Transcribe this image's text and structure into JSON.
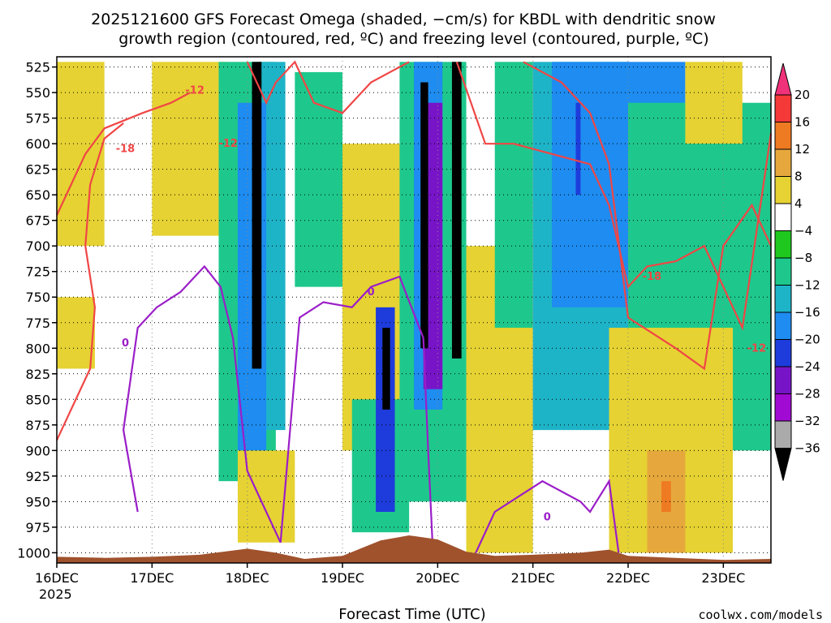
{
  "chart_data": {
    "type": "heatmap",
    "title_lines": [
      "2025121600 GFS Forecast Omega (shaded, −cm/s) for KBDL with dendritic snow",
      "growth region (contoured, red, ºC) and freezing level (contoured, purple, ºC)"
    ],
    "xlabel": "Forecast Time (UTC)",
    "x_ticks": [
      "16DEC",
      "17DEC",
      "18DEC",
      "19DEC",
      "20DEC",
      "21DEC",
      "22DEC",
      "23DEC"
    ],
    "x_year_label": "2025",
    "x_range_days": [
      0,
      7.5
    ],
    "y_ticks": [
      525,
      550,
      575,
      600,
      625,
      650,
      675,
      700,
      725,
      750,
      775,
      800,
      825,
      850,
      875,
      900,
      925,
      950,
      975,
      1000
    ],
    "y_range_hpa": [
      1010,
      515
    ],
    "colorbar": {
      "labels": [
        "20",
        "16",
        "12",
        "8",
        "4",
        "−4",
        "−8",
        "−12",
        "−16",
        "−20",
        "−24",
        "−28",
        "−32",
        "−36"
      ],
      "colors": [
        "#f0327a",
        "#f53838",
        "#ee7a22",
        "#e6a83c",
        "#e6d232",
        "#ffffff",
        "#1ec81e",
        "#1ec88c",
        "#1eb4c8",
        "#1e8cf0",
        "#1e3cdc",
        "#7814c8",
        "#a00ad2",
        "#aaaaaa",
        "#000000"
      ]
    },
    "shaded_bands": [
      {
        "x": [
          0.0,
          0.5
        ],
        "p": [
          520,
          700
        ],
        "value": 6
      },
      {
        "x": [
          0.0,
          0.4
        ],
        "p": [
          750,
          820
        ],
        "value": 6
      },
      {
        "x": [
          1.0,
          1.8
        ],
        "p": [
          520,
          690
        ],
        "value": 6
      },
      {
        "x": [
          1.7,
          2.3
        ],
        "p": [
          520,
          930
        ],
        "value": -8
      },
      {
        "x": [
          2.1,
          2.4
        ],
        "p": [
          520,
          880
        ],
        "value": -12
      },
      {
        "x": [
          1.9,
          2.2
        ],
        "p": [
          560,
          900
        ],
        "value": -16
      },
      {
        "x": [
          2.05,
          2.15
        ],
        "p": [
          520,
          820
        ],
        "value": -36
      },
      {
        "x": [
          1.9,
          2.5
        ],
        "p": [
          900,
          990
        ],
        "value": 6
      },
      {
        "x": [
          2.5,
          3.0
        ],
        "p": [
          530,
          740
        ],
        "value": -8
      },
      {
        "x": [
          3.0,
          4.0
        ],
        "p": [
          600,
          900
        ],
        "value": 6
      },
      {
        "x": [
          3.1,
          3.7
        ],
        "p": [
          850,
          980
        ],
        "value": -8
      },
      {
        "x": [
          3.35,
          3.55
        ],
        "p": [
          760,
          960
        ],
        "value": -20
      },
      {
        "x": [
          3.42,
          3.5
        ],
        "p": [
          780,
          860
        ],
        "value": -36
      },
      {
        "x": [
          3.6,
          4.3
        ],
        "p": [
          520,
          950
        ],
        "value": -8
      },
      {
        "x": [
          3.75,
          4.05
        ],
        "p": [
          520,
          860
        ],
        "value": -16
      },
      {
        "x": [
          3.85,
          4.05
        ],
        "p": [
          560,
          840
        ],
        "value": -24
      },
      {
        "x": [
          3.82,
          3.9
        ],
        "p": [
          540,
          800
        ],
        "value": -36
      },
      {
        "x": [
          4.15,
          4.25
        ],
        "p": [
          520,
          810
        ],
        "value": -36
      },
      {
        "x": [
          4.3,
          5.0
        ],
        "p": [
          700,
          1000
        ],
        "value": 6
      },
      {
        "x": [
          4.6,
          5.0
        ],
        "p": [
          520,
          780
        ],
        "value": -8
      },
      {
        "x": [
          5.0,
          6.0
        ],
        "p": [
          520,
          880
        ],
        "value": -12
      },
      {
        "x": [
          5.2,
          6.6
        ],
        "p": [
          520,
          760
        ],
        "value": -16
      },
      {
        "x": [
          5.45,
          5.5
        ],
        "p": [
          560,
          650
        ],
        "value": -20
      },
      {
        "x": [
          6.0,
          7.5
        ],
        "p": [
          560,
          900
        ],
        "value": -8
      },
      {
        "x": [
          5.8,
          7.1
        ],
        "p": [
          780,
          1000
        ],
        "value": 6
      },
      {
        "x": [
          6.2,
          6.6
        ],
        "p": [
          900,
          1000
        ],
        "value": 12
      },
      {
        "x": [
          6.35,
          6.45
        ],
        "p": [
          930,
          960
        ],
        "value": 16
      },
      {
        "x": [
          6.6,
          7.2
        ],
        "p": [
          520,
          600
        ],
        "value": 8
      }
    ],
    "dgz_contours": [
      {
        "name": "-12 west",
        "value": -12,
        "points": [
          [
            0.0,
            670
          ],
          [
            0.15,
            640
          ],
          [
            0.3,
            610
          ],
          [
            0.5,
            585
          ],
          [
            0.9,
            570
          ],
          [
            1.2,
            560
          ],
          [
            1.4,
            550
          ]
        ],
        "label": "-12",
        "label_at": [
          1.45,
          548
        ]
      },
      {
        "name": "-18 west",
        "value": -18,
        "points": [
          [
            0.0,
            890
          ],
          [
            0.15,
            860
          ],
          [
            0.35,
            820
          ],
          [
            0.4,
            760
          ],
          [
            0.3,
            700
          ],
          [
            0.35,
            640
          ],
          [
            0.5,
            595
          ],
          [
            0.7,
            580
          ]
        ],
        "label": "-18",
        "label_at": [
          0.72,
          605
        ]
      },
      {
        "name": "-12 mid",
        "value": -12,
        "points": [
          [
            2.0,
            520
          ],
          [
            2.2,
            560
          ],
          [
            2.3,
            540
          ],
          [
            2.5,
            520
          ],
          [
            2.7,
            560
          ],
          [
            3.0,
            570
          ],
          [
            3.3,
            540
          ],
          [
            3.7,
            520
          ]
        ],
        "label": "-12",
        "label_at": [
          1.8,
          600
        ]
      },
      {
        "name": "-12 east",
        "value": -12,
        "points": [
          [
            4.2,
            520
          ],
          [
            4.5,
            600
          ],
          [
            4.8,
            600
          ],
          [
            5.2,
            610
          ],
          [
            5.6,
            620
          ],
          [
            5.8,
            660
          ],
          [
            6.0,
            740
          ],
          [
            6.2,
            720
          ],
          [
            6.5,
            715
          ],
          [
            6.8,
            700
          ],
          [
            7.2,
            780
          ],
          [
            7.5,
            590
          ]
        ],
        "label": "-12",
        "label_at": [
          7.35,
          800
        ]
      },
      {
        "name": "-18 east",
        "value": -18,
        "points": [
          [
            4.9,
            520
          ],
          [
            5.3,
            540
          ],
          [
            5.6,
            570
          ],
          [
            5.8,
            620
          ],
          [
            6.0,
            770
          ],
          [
            6.5,
            800
          ],
          [
            6.8,
            820
          ],
          [
            7.0,
            700
          ],
          [
            7.3,
            660
          ],
          [
            7.5,
            700
          ]
        ],
        "label": "-18",
        "label_at": [
          6.25,
          730
        ]
      }
    ],
    "freezing_contours": [
      {
        "name": "0C west",
        "value": 0,
        "points": [
          [
            0.85,
            960
          ],
          [
            0.7,
            880
          ],
          [
            0.85,
            780
          ],
          [
            1.05,
            760
          ],
          [
            1.3,
            745
          ],
          [
            1.55,
            720
          ],
          [
            1.72,
            740
          ],
          [
            1.85,
            790
          ],
          [
            2.0,
            920
          ],
          [
            2.2,
            960
          ],
          [
            2.35,
            990
          ]
        ],
        "label": "0",
        "label_at": [
          0.72,
          795
        ]
      },
      {
        "name": "0C mid",
        "value": 0,
        "points": [
          [
            2.35,
            990
          ],
          [
            2.55,
            770
          ],
          [
            2.8,
            755
          ],
          [
            3.1,
            760
          ],
          [
            3.3,
            740
          ],
          [
            3.6,
            730
          ],
          [
            3.85,
            790
          ],
          [
            3.9,
            900
          ],
          [
            3.95,
            1000
          ]
        ],
        "label": "0",
        "label_at": [
          3.3,
          745
        ]
      },
      {
        "name": "0C east",
        "value": 0,
        "points": [
          [
            4.4,
            1000
          ],
          [
            4.6,
            960
          ],
          [
            5.1,
            930
          ],
          [
            5.5,
            950
          ],
          [
            5.6,
            960
          ],
          [
            5.8,
            930
          ],
          [
            5.9,
            1000
          ]
        ],
        "label": "0",
        "label_at": [
          5.15,
          965
        ]
      }
    ],
    "terrain": {
      "color": "#a0522d",
      "points": [
        [
          0.0,
          1004
        ],
        [
          0.5,
          1005
        ],
        [
          1.0,
          1004
        ],
        [
          1.5,
          1002
        ],
        [
          2.0,
          996
        ],
        [
          2.3,
          1000
        ],
        [
          2.6,
          1006
        ],
        [
          3.0,
          1003
        ],
        [
          3.4,
          988
        ],
        [
          3.7,
          983
        ],
        [
          4.0,
          987
        ],
        [
          4.3,
          999
        ],
        [
          4.6,
          1003
        ],
        [
          5.0,
          1002
        ],
        [
          5.5,
          1000
        ],
        [
          5.8,
          997
        ],
        [
          6.0,
          1003
        ],
        [
          6.5,
          1005
        ],
        [
          7.0,
          1007
        ],
        [
          7.5,
          1006
        ]
      ]
    }
  },
  "credit": "coolwx.com/models",
  "colors": {
    "dgz": "#f04646",
    "freezing": "#9b1ec8",
    "credit": "#d03030"
  }
}
